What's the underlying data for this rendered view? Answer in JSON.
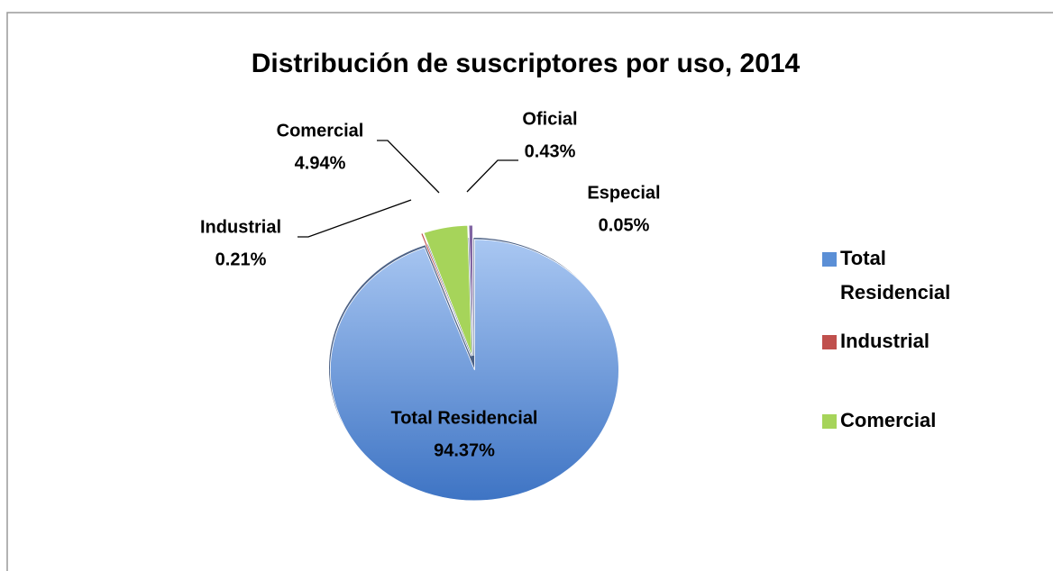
{
  "chart_data": {
    "type": "pie",
    "title": "Distribución de suscriptores por uso, 2014",
    "categories": [
      "Total Residencial",
      "Industrial",
      "Comercial",
      "Oficial",
      "Especial"
    ],
    "values": [
      94.37,
      0.21,
      4.94,
      0.43,
      0.05
    ],
    "value_labels": [
      "94.37%",
      "0.21%",
      "4.94%",
      "0.43%",
      "0.05%"
    ],
    "colors": [
      "#5b8fd6",
      "#c0504d",
      "#a6d45a",
      "#8064a2",
      "#4bacc6"
    ],
    "legend": [
      "Total Residencial",
      "Industrial",
      "Comercial"
    ],
    "legend_position": "right"
  }
}
